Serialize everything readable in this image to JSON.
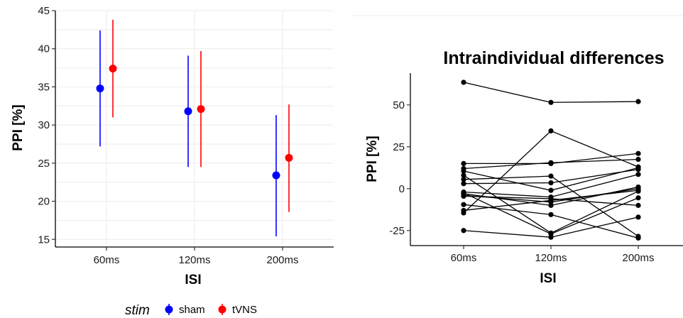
{
  "chart_data": [
    {
      "type": "scatter",
      "title": "",
      "xlabel": "ISI",
      "ylabel": "PPI [%]",
      "categories": [
        "60ms",
        "120ms",
        "200ms"
      ],
      "ylim": [
        14,
        45
      ],
      "yticks": [
        15,
        20,
        25,
        30,
        35,
        40,
        45
      ],
      "grid": true,
      "legend": {
        "title": "stim",
        "placement": "bottom"
      },
      "series": [
        {
          "name": "sham",
          "color": "#0000ff",
          "values": [
            34.8,
            31.8,
            23.4
          ],
          "lower": [
            27.2,
            24.5,
            15.4
          ],
          "upper": [
            42.4,
            39.1,
            31.3
          ]
        },
        {
          "name": "tVNS",
          "color": "#ff0000",
          "values": [
            37.4,
            32.1,
            25.7
          ],
          "lower": [
            31.0,
            24.5,
            18.6
          ],
          "upper": [
            43.8,
            39.7,
            32.7
          ]
        }
      ]
    },
    {
      "type": "line",
      "title": "Intraindividual differences",
      "xlabel": "ISI",
      "ylabel": "PPI [%]",
      "categories": [
        "60ms",
        "120ms",
        "200ms"
      ],
      "ylim": [
        -34,
        69
      ],
      "yticks": [
        -25,
        0,
        25,
        50
      ],
      "ytick_labels": [
        "-25",
        "0",
        "25",
        "50"
      ],
      "grid": false,
      "color": "#000000",
      "series": [
        {
          "values": [
            63.5,
            51.5,
            52.0
          ]
        },
        {
          "values": [
            15.0,
            15.0,
            21.0
          ]
        },
        {
          "values": [
            12.0,
            15.5,
            17.5
          ]
        },
        {
          "values": [
            10.5,
            -1.0,
            12.5
          ]
        },
        {
          "values": [
            5.5,
            7.5,
            -28.5
          ]
        },
        {
          "values": [
            3.0,
            3.5,
            11.5
          ]
        },
        {
          "values": [
            -2.0,
            -5.0,
            8.5
          ]
        },
        {
          "values": [
            -3.0,
            -10.0,
            1.0
          ]
        },
        {
          "values": [
            -4.0,
            -8.0,
            0.0
          ]
        },
        {
          "values": [
            -9.5,
            -15.5,
            -29.5
          ]
        },
        {
          "values": [
            -14.5,
            34.5,
            13.0
          ]
        },
        {
          "values": [
            -13.0,
            -7.0,
            -1.0
          ]
        },
        {
          "values": [
            -25.0,
            -29.0,
            -17.0
          ]
        },
        {
          "values": [
            -2.5,
            -27.0,
            -5.5
          ]
        },
        {
          "values": [
            -4.5,
            -6.0,
            -10.0
          ]
        },
        {
          "values": [
            8.0,
            -26.5,
            -1.5
          ]
        }
      ]
    }
  ]
}
